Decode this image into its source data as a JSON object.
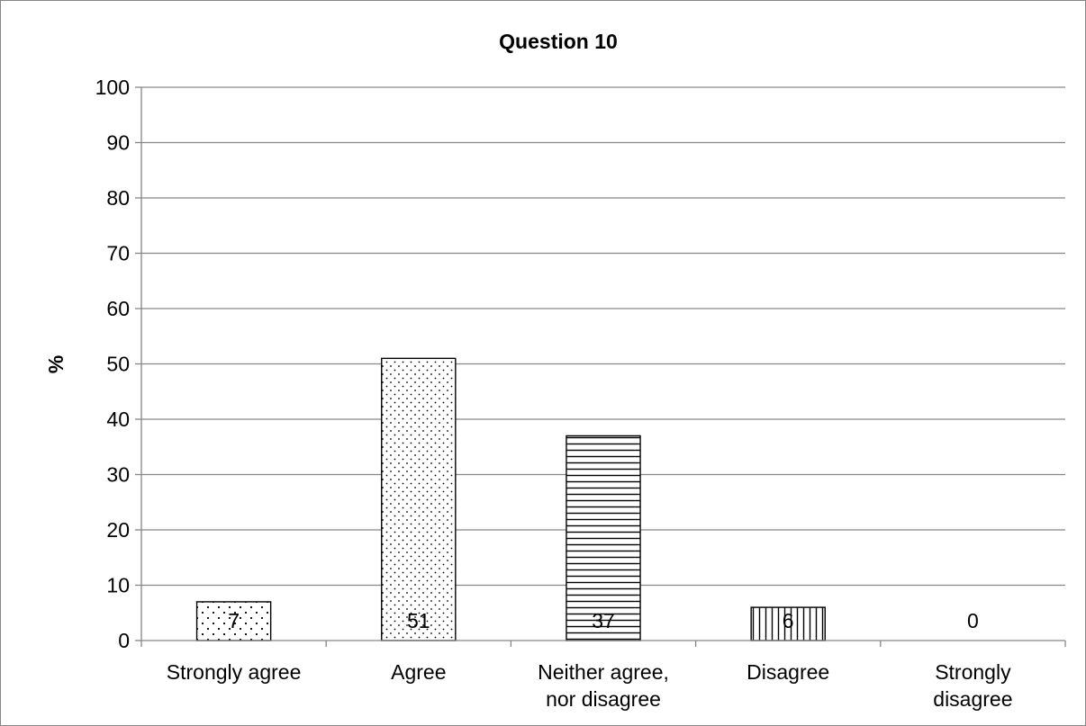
{
  "chart_data": {
    "type": "bar",
    "title": "Question 10",
    "xlabel": "",
    "ylabel": "%",
    "ylim": [
      0,
      100
    ],
    "ytick_step": 10,
    "grid": true,
    "legend": "none",
    "categories": [
      "Strongly agree",
      "Agree",
      "Neither agree, nor disagree",
      "Disagree",
      "Strongly disagree"
    ],
    "category_lines": [
      [
        "Strongly agree"
      ],
      [
        "Agree"
      ],
      [
        "Neither agree,",
        "nor disagree"
      ],
      [
        "Disagree"
      ],
      [
        "Strongly",
        "disagree"
      ]
    ],
    "values": [
      7,
      51,
      37,
      6,
      0
    ],
    "value_labels": [
      "7",
      "51",
      "37",
      "6",
      "0"
    ],
    "patterns": [
      "dots-sparse",
      "dots-dense",
      "horizontal-lines",
      "vertical-lines",
      "none"
    ],
    "colors": {
      "bar_fill": "#ffffff",
      "bar_stroke": "#000000",
      "grid": "#868686",
      "axis": "#868686",
      "text": "#000000"
    }
  }
}
